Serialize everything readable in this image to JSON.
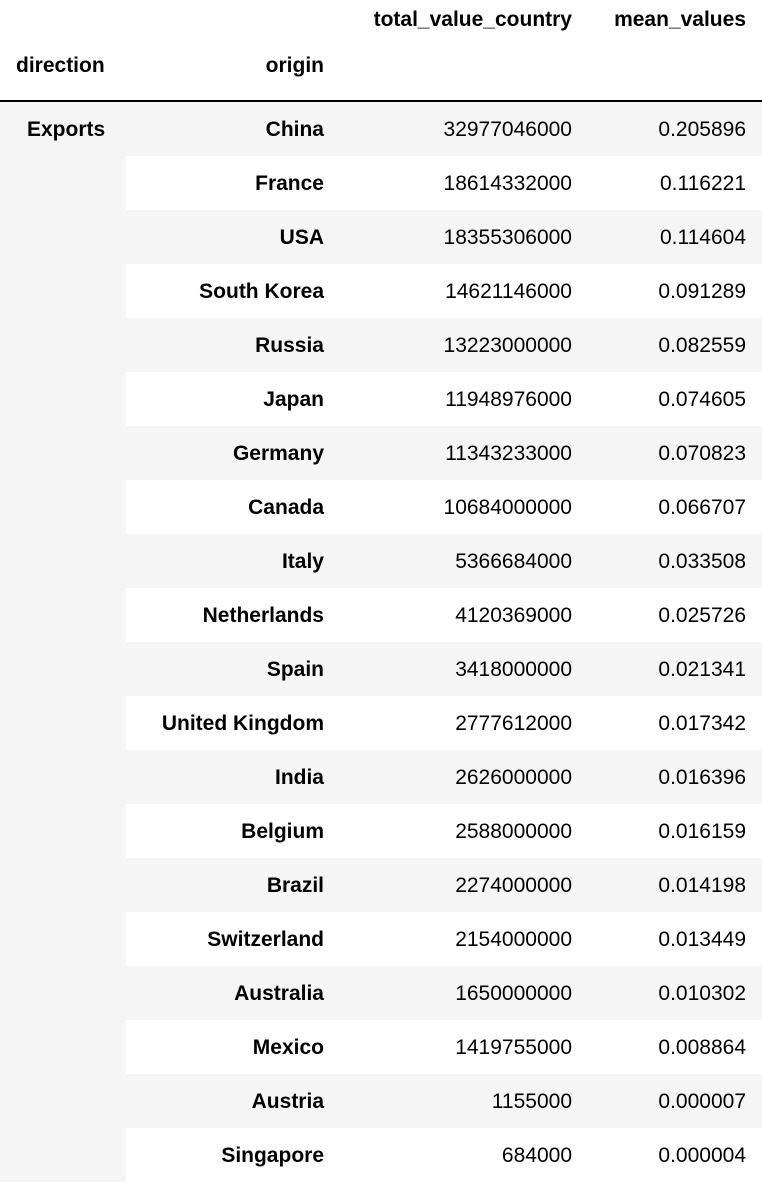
{
  "header": {
    "columns": [
      "total_value_country",
      "mean_values"
    ],
    "index_names": [
      "direction",
      "origin"
    ]
  },
  "group": {
    "direction": "Exports"
  },
  "rows": [
    {
      "origin": "China",
      "total_value_country": "32977046000",
      "mean_values": "0.205896"
    },
    {
      "origin": "France",
      "total_value_country": "18614332000",
      "mean_values": "0.116221"
    },
    {
      "origin": "USA",
      "total_value_country": "18355306000",
      "mean_values": "0.114604"
    },
    {
      "origin": "South Korea",
      "total_value_country": "14621146000",
      "mean_values": "0.091289"
    },
    {
      "origin": "Russia",
      "total_value_country": "13223000000",
      "mean_values": "0.082559"
    },
    {
      "origin": "Japan",
      "total_value_country": "11948976000",
      "mean_values": "0.074605"
    },
    {
      "origin": "Germany",
      "total_value_country": "11343233000",
      "mean_values": "0.070823"
    },
    {
      "origin": "Canada",
      "total_value_country": "10684000000",
      "mean_values": "0.066707"
    },
    {
      "origin": "Italy",
      "total_value_country": "5366684000",
      "mean_values": "0.033508"
    },
    {
      "origin": "Netherlands",
      "total_value_country": "4120369000",
      "mean_values": "0.025726"
    },
    {
      "origin": "Spain",
      "total_value_country": "3418000000",
      "mean_values": "0.021341"
    },
    {
      "origin": "United Kingdom",
      "total_value_country": "2777612000",
      "mean_values": "0.017342"
    },
    {
      "origin": "India",
      "total_value_country": "2626000000",
      "mean_values": "0.016396"
    },
    {
      "origin": "Belgium",
      "total_value_country": "2588000000",
      "mean_values": "0.016159"
    },
    {
      "origin": "Brazil",
      "total_value_country": "2274000000",
      "mean_values": "0.014198"
    },
    {
      "origin": "Switzerland",
      "total_value_country": "2154000000",
      "mean_values": "0.013449"
    },
    {
      "origin": "Australia",
      "total_value_country": "1650000000",
      "mean_values": "0.010302"
    },
    {
      "origin": "Mexico",
      "total_value_country": "1419755000",
      "mean_values": "0.008864"
    },
    {
      "origin": "Austria",
      "total_value_country": "1155000",
      "mean_values": "0.000007"
    },
    {
      "origin": "Singapore",
      "total_value_country": "684000",
      "mean_values": "0.000004"
    }
  ]
}
